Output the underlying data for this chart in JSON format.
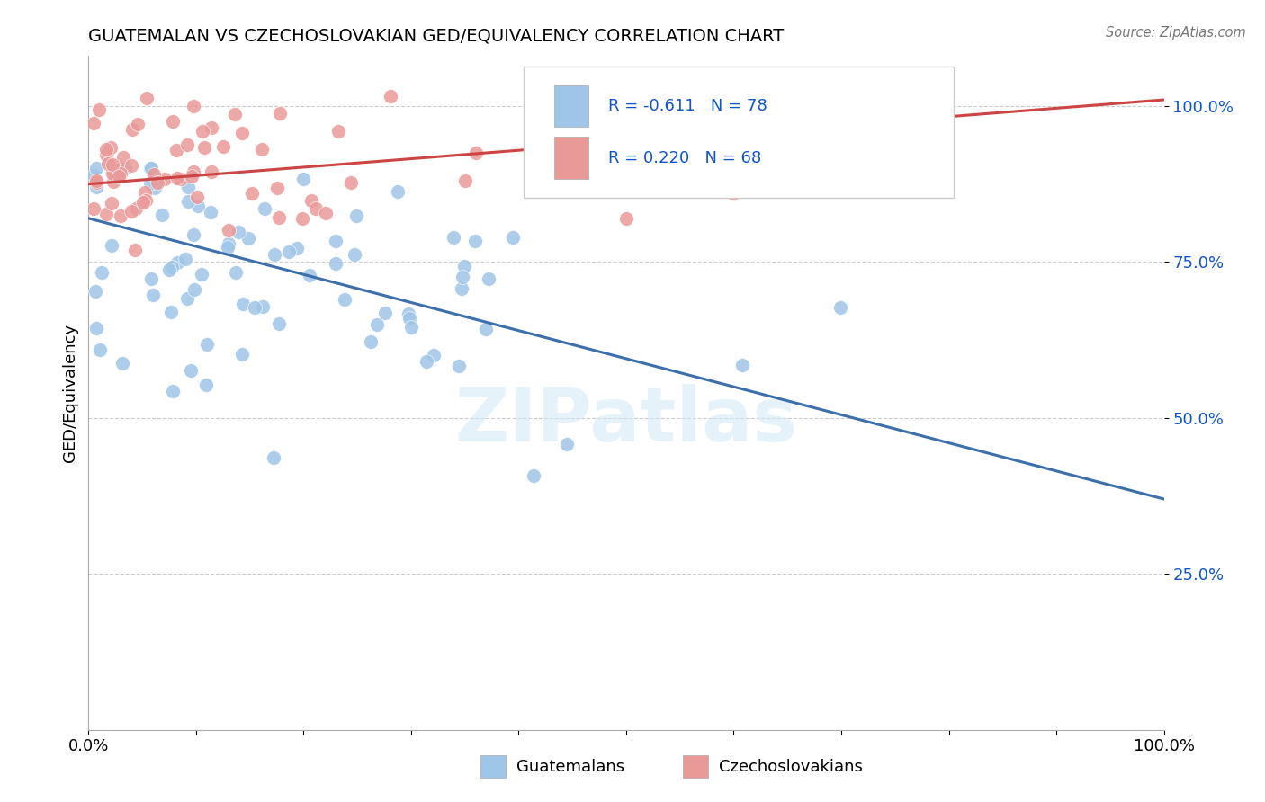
{
  "title": "GUATEMALAN VS CZECHOSLOVAKIAN GED/EQUIVALENCY CORRELATION CHART",
  "source": "Source: ZipAtlas.com",
  "ylabel": "GED/Equivalency",
  "xlim": [
    0.0,
    1.0
  ],
  "ylim": [
    0.0,
    1.08
  ],
  "yticks": [
    0.25,
    0.5,
    0.75,
    1.0
  ],
  "ytick_labels": [
    "25.0%",
    "50.0%",
    "75.0%",
    "100.0%"
  ],
  "blue_R": -0.611,
  "blue_N": 78,
  "pink_R": 0.22,
  "pink_N": 68,
  "blue_color": "#9fc5e8",
  "pink_color": "#ea9999",
  "blue_line_color": "#3d6fad",
  "pink_line_color": "#cc4444",
  "legend_color": "#1155cc",
  "watermark_color": "#d0e8f5"
}
